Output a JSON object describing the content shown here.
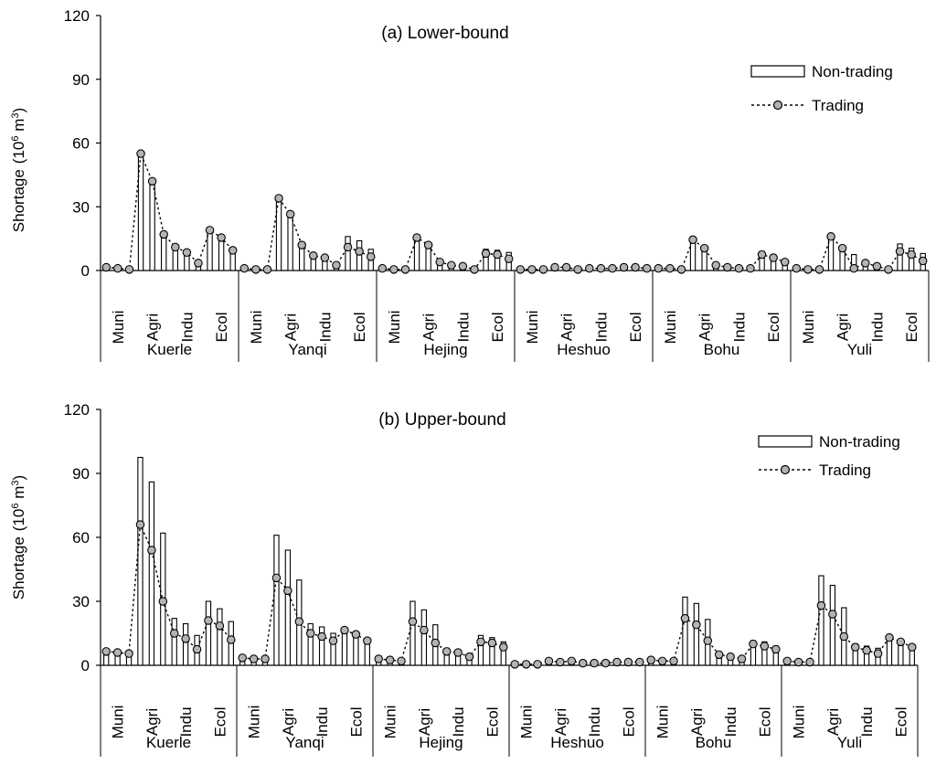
{
  "legend": {
    "non_trading": "Non-trading",
    "trading": "Trading"
  },
  "chart_data": [
    {
      "type": "bar",
      "title": "(a) Lower-bound",
      "ylabel": "Shortage (10^6 m^3)",
      "ylabel_main": "Shortage",
      "ylabel_unit_open": "(10",
      "ylabel_unit_exp": "6",
      "ylabel_unit_mid": " m",
      "ylabel_unit_exp2": "3",
      "ylabel_unit_close": ")",
      "ylim": [
        0,
        120
      ],
      "yticks": [
        "0",
        "30",
        "60",
        "90",
        "120"
      ],
      "sector_labels": [
        "Muni",
        "Agri",
        "Indu",
        "Ecol"
      ],
      "regions": [
        "Kuerle",
        "Yanqi",
        "Hejing",
        "Heshuo",
        "Bohu",
        "Yuli"
      ],
      "series": [
        {
          "name": "Non-trading",
          "values": [
            [
              1.5,
              1,
              0.5,
              55,
              42,
              17,
              11,
              8.5,
              3.5,
              19,
              16,
              10
            ],
            [
              1,
              0.5,
              0.5,
              34,
              26,
              12,
              7.5,
              6,
              3,
              16,
              14,
              10
            ],
            [
              1,
              0.5,
              0.5,
              15.5,
              12,
              4,
              3,
              2.5,
              1,
              10,
              9.5,
              8.5
            ],
            [
              0.5,
              0.5,
              0.5,
              1.5,
              1.5,
              0.5,
              1,
              1,
              1,
              1.5,
              1.5,
              1
            ],
            [
              1,
              1,
              0.5,
              14.5,
              10.5,
              2.5,
              1.5,
              1,
              1,
              9,
              7.5,
              5
            ],
            [
              1,
              0.5,
              0.5,
              16.5,
              10.5,
              7.5,
              3.5,
              2.5,
              1.5,
              12.5,
              10.5,
              8
            ]
          ]
        },
        {
          "name": "Trading",
          "values": [
            [
              1.5,
              1,
              0.5,
              55,
              42,
              17,
              11,
              8.5,
              3.5,
              19,
              15.5,
              9.5
            ],
            [
              1,
              0.5,
              0.5,
              34,
              26.5,
              12,
              7,
              6,
              2.5,
              11,
              9,
              6.5
            ],
            [
              1,
              0.5,
              0.5,
              15.5,
              12,
              4,
              2.5,
              2,
              0.5,
              8,
              7.5,
              5.5
            ],
            [
              0.5,
              0.5,
              0.5,
              1.5,
              1.5,
              0.5,
              1,
              1,
              1,
              1.5,
              1.5,
              1
            ],
            [
              1,
              1,
              0.5,
              14.5,
              10.5,
              2.5,
              1.5,
              1,
              1,
              7.5,
              6,
              4
            ],
            [
              1,
              0.5,
              0.5,
              16,
              10.5,
              1,
              3.5,
              2,
              0.5,
              9,
              7.5,
              4.5
            ]
          ]
        }
      ]
    },
    {
      "type": "bar",
      "title": "(b) Upper-bound",
      "ylabel": "Shortage (10^6 m^3)",
      "ylabel_main": "Shortage",
      "ylabel_unit_open": "(10",
      "ylabel_unit_exp": "6",
      "ylabel_unit_mid": " m",
      "ylabel_unit_exp2": "3",
      "ylabel_unit_close": ")",
      "ylim": [
        0,
        120
      ],
      "yticks": [
        "0",
        "30",
        "60",
        "90",
        "120"
      ],
      "sector_labels": [
        "Muni",
        "Agri",
        "Indu",
        "Ecol"
      ],
      "regions": [
        "Kuerle",
        "Yanqi",
        "Hejing",
        "Heshuo",
        "Bohu",
        "Yuli"
      ],
      "series": [
        {
          "name": "Non-trading",
          "values": [
            [
              6.5,
              6,
              5.5,
              97.5,
              86,
              62,
              22,
              19.5,
              14,
              30,
              26.5,
              20.5
            ],
            [
              3.5,
              3,
              3,
              61,
              54,
              40,
              19.5,
              18,
              15,
              16.5,
              15,
              12.5
            ],
            [
              3,
              2.5,
              2,
              30,
              26,
              19,
              8,
              6,
              5,
              14,
              13,
              11
            ],
            [
              0.5,
              0.5,
              0.5,
              2,
              1.5,
              2,
              1,
              1,
              1,
              1.5,
              1.5,
              1.5
            ],
            [
              2.5,
              2,
              2,
              32,
              29,
              21.5,
              6,
              4.5,
              3,
              11.5,
              11,
              9
            ],
            [
              2,
              1.5,
              1.5,
              42,
              37.5,
              27,
              10,
              9,
              8,
              14,
              12,
              9.5
            ]
          ]
        },
        {
          "name": "Trading",
          "values": [
            [
              6.5,
              6,
              5.5,
              66,
              54,
              30,
              15,
              12.5,
              7.5,
              21,
              18.5,
              12
            ],
            [
              3.5,
              3,
              3,
              41,
              35,
              20.5,
              15,
              13.5,
              11.5,
              16.5,
              14.5,
              11.5
            ],
            [
              3,
              2.5,
              2,
              20.5,
              16.5,
              10.5,
              6.5,
              6,
              4,
              11,
              10.5,
              8.5
            ],
            [
              0.5,
              0.5,
              0.5,
              2,
              1.5,
              2,
              1,
              1,
              1,
              1.5,
              1.5,
              1.5
            ],
            [
              2.5,
              2,
              2,
              22,
              19,
              11.5,
              5,
              4,
              3,
              10,
              9,
              7.5
            ],
            [
              2,
              1.5,
              1.5,
              28,
              24,
              13.5,
              8.5,
              7,
              5.5,
              13,
              11,
              8.5
            ]
          ]
        }
      ]
    }
  ]
}
